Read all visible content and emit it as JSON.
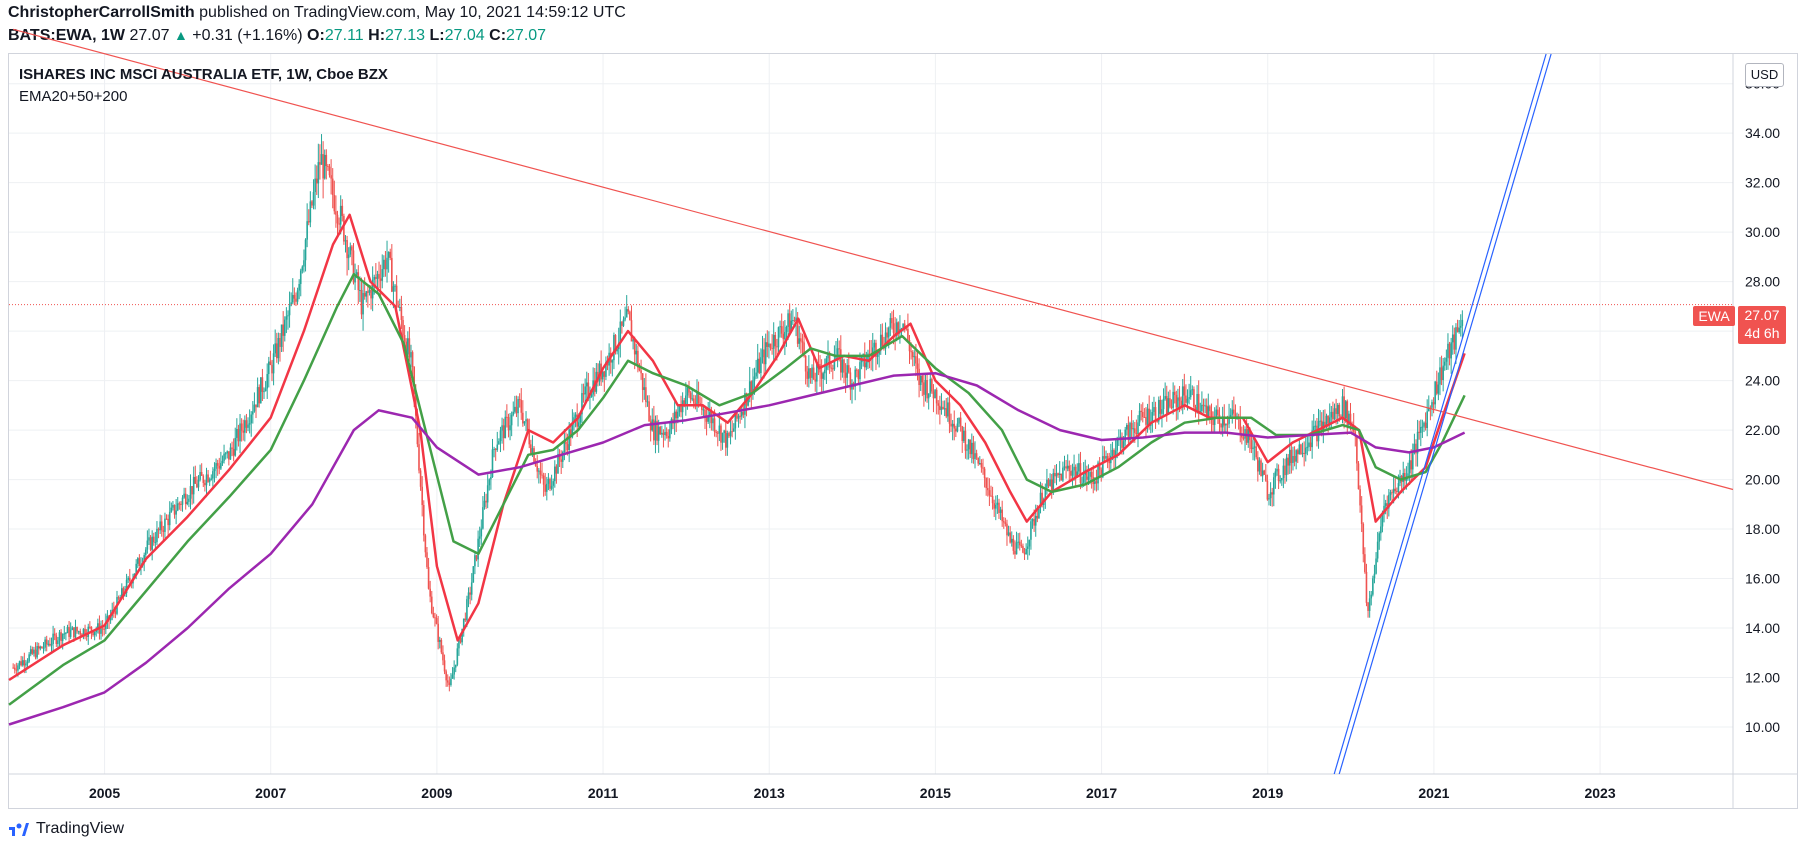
{
  "header": {
    "author": "ChristopherCarrollSmith",
    "published_text": "published on TradingView.com, May 10, 2021 14:59:12 UTC",
    "symbol": "BATS:EWA, 1W",
    "last": "27.07",
    "change_arrow": "▲",
    "change": "+0.31 (+1.16%)",
    "o_label": "O:",
    "o_value": "27.11",
    "h_label": "H:",
    "h_value": "27.13",
    "l_label": "L:",
    "l_value": "27.04",
    "c_label": "C:",
    "c_value": "27.07"
  },
  "legend": {
    "title": "ISHARES INC MSCI AUSTRALIA ETF, 1W, Cboe BZX",
    "study": "EMA20+50+200"
  },
  "price_scale": {
    "currency": "USD",
    "symbol_tag": "EWA",
    "last_price": "27.07",
    "countdown": "4d 6h"
  },
  "footer": {
    "brand": "TradingView"
  },
  "colors": {
    "price_line": "#f05350",
    "ema20": "#f23645",
    "ema50": "#43a047",
    "ema200": "#9c27b0",
    "trendline_down": "#f05350",
    "trendline_up": "#2962ff",
    "candle_up": "#26a69a",
    "candle_down": "#ef5350",
    "grid": "#eef0f3"
  },
  "chart_data": {
    "type": "line",
    "title": "ISHARES INC MSCI AUSTRALIA ETF, 1W, Cboe BZX",
    "x_ticks": [
      "2005",
      "2007",
      "2009",
      "2011",
      "2013",
      "2015",
      "2017",
      "2019",
      "2021",
      "2023"
    ],
    "y_ticks": [
      10,
      12,
      14,
      16,
      18,
      20,
      22,
      24,
      26,
      28,
      30,
      32,
      34,
      36
    ],
    "xlim": [
      2003.85,
      2024.6
    ],
    "ylim": [
      8.1,
      37.2
    ],
    "grid": true,
    "last_price": 27.07,
    "series": [
      {
        "name": "EWA",
        "style": "candles",
        "x": [
          2003.9,
          2004.5,
          2005.0,
          2005.5,
          2006.0,
          2006.5,
          2007.0,
          2007.3,
          2007.6,
          2007.85,
          2008.1,
          2008.4,
          2008.7,
          2008.9,
          2009.15,
          2009.4,
          2009.7,
          2010.0,
          2010.3,
          2010.5,
          2010.8,
          2011.0,
          2011.3,
          2011.6,
          2011.8,
          2012.0,
          2012.3,
          2012.5,
          2012.8,
          2013.0,
          2013.3,
          2013.5,
          2013.8,
          2014.0,
          2014.3,
          2014.6,
          2014.8,
          2015.0,
          2015.3,
          2015.6,
          2015.9,
          2016.05,
          2016.3,
          2016.6,
          2016.9,
          2017.2,
          2017.5,
          2017.8,
          2018.05,
          2018.3,
          2018.6,
          2018.8,
          2019.0,
          2019.3,
          2019.6,
          2019.9,
          2020.05,
          2020.2,
          2020.4,
          2020.7,
          2020.9,
          2021.1,
          2021.3,
          2021.36
        ],
        "values": [
          12.4,
          13.8,
          14.0,
          17.2,
          19.5,
          21.0,
          24.5,
          27.5,
          33.0,
          30.5,
          27.0,
          29.0,
          24.5,
          15.5,
          11.5,
          15.5,
          21.5,
          23.0,
          19.5,
          21.0,
          23.5,
          24.5,
          26.5,
          22.0,
          22.0,
          23.5,
          22.5,
          21.5,
          24.0,
          25.5,
          26.5,
          24.0,
          25.0,
          24.0,
          25.5,
          26.5,
          24.0,
          23.5,
          22.0,
          20.0,
          17.5,
          17.0,
          19.5,
          20.5,
          20.0,
          21.5,
          22.5,
          23.0,
          23.5,
          22.5,
          22.5,
          21.5,
          19.5,
          21.0,
          22.0,
          23.0,
          22.0,
          14.5,
          19.0,
          20.5,
          22.5,
          24.5,
          26.0,
          27.07
        ]
      },
      {
        "name": "EMA20",
        "x": [
          2003.85,
          2004.5,
          2005.0,
          2005.5,
          2006.0,
          2006.5,
          2007.0,
          2007.4,
          2007.75,
          2007.95,
          2008.2,
          2008.5,
          2008.8,
          2009.0,
          2009.25,
          2009.5,
          2009.8,
          2010.1,
          2010.4,
          2010.7,
          2011.0,
          2011.3,
          2011.6,
          2011.9,
          2012.2,
          2012.5,
          2012.8,
          2013.1,
          2013.35,
          2013.6,
          2013.9,
          2014.2,
          2014.5,
          2014.7,
          2015.0,
          2015.3,
          2015.6,
          2015.9,
          2016.1,
          2016.4,
          2016.8,
          2017.2,
          2017.6,
          2018.0,
          2018.3,
          2018.7,
          2019.0,
          2019.3,
          2019.6,
          2019.9,
          2020.1,
          2020.3,
          2020.6,
          2020.9,
          2021.1,
          2021.37
        ],
        "values": [
          11.9,
          13.3,
          14.1,
          16.8,
          18.5,
          20.4,
          22.5,
          26.0,
          29.5,
          30.7,
          28.0,
          27.0,
          22.0,
          16.5,
          13.5,
          15.0,
          19.0,
          22.0,
          21.5,
          22.5,
          24.5,
          26.0,
          24.8,
          23.0,
          23.0,
          22.3,
          23.5,
          25.0,
          26.5,
          24.5,
          25.0,
          24.8,
          25.8,
          26.3,
          24.0,
          23.0,
          21.5,
          19.5,
          18.3,
          19.5,
          20.3,
          21.0,
          22.3,
          23.0,
          22.5,
          22.5,
          20.7,
          21.5,
          22.0,
          22.5,
          22.0,
          18.3,
          19.5,
          20.5,
          22.5,
          25.1
        ]
      },
      {
        "name": "EMA50",
        "x": [
          2003.85,
          2004.5,
          2005.0,
          2005.5,
          2006.0,
          2006.5,
          2007.0,
          2007.4,
          2007.8,
          2008.0,
          2008.3,
          2008.6,
          2008.9,
          2009.2,
          2009.5,
          2009.8,
          2010.1,
          2010.4,
          2010.7,
          2011.0,
          2011.3,
          2011.6,
          2012.0,
          2012.4,
          2012.8,
          2013.2,
          2013.5,
          2013.8,
          2014.2,
          2014.6,
          2015.0,
          2015.4,
          2015.8,
          2016.1,
          2016.4,
          2016.8,
          2017.2,
          2017.6,
          2018.0,
          2018.4,
          2018.8,
          2019.1,
          2019.5,
          2019.9,
          2020.1,
          2020.3,
          2020.6,
          2020.9,
          2021.1,
          2021.37
        ],
        "values": [
          10.9,
          12.5,
          13.5,
          15.5,
          17.5,
          19.3,
          21.2,
          24.0,
          27.0,
          28.3,
          27.5,
          25.5,
          21.5,
          17.5,
          17.0,
          19.0,
          21.0,
          21.2,
          22.0,
          23.3,
          24.8,
          24.3,
          23.8,
          23.0,
          23.5,
          24.5,
          25.3,
          25.0,
          25.0,
          25.8,
          24.5,
          23.5,
          22.0,
          20.0,
          19.5,
          19.8,
          20.5,
          21.5,
          22.3,
          22.5,
          22.5,
          21.8,
          21.8,
          22.2,
          22.0,
          20.5,
          20.0,
          20.3,
          21.5,
          23.4
        ]
      },
      {
        "name": "EMA200",
        "x": [
          2003.85,
          2004.5,
          2005.0,
          2005.5,
          2006.0,
          2006.5,
          2007.0,
          2007.5,
          2008.0,
          2008.3,
          2008.7,
          2009.0,
          2009.5,
          2010.0,
          2010.5,
          2011.0,
          2011.5,
          2012.0,
          2012.5,
          2013.0,
          2013.5,
          2014.0,
          2014.5,
          2015.0,
          2015.5,
          2016.0,
          2016.5,
          2017.0,
          2017.5,
          2018.0,
          2018.5,
          2019.0,
          2019.5,
          2020.0,
          2020.3,
          2020.7,
          2021.0,
          2021.37
        ],
        "values": [
          10.1,
          10.8,
          11.4,
          12.6,
          14.0,
          15.6,
          17.0,
          19.0,
          22.0,
          22.8,
          22.5,
          21.3,
          20.2,
          20.5,
          21.0,
          21.5,
          22.2,
          22.4,
          22.7,
          23.0,
          23.4,
          23.8,
          24.2,
          24.3,
          23.8,
          22.8,
          22.0,
          21.6,
          21.7,
          21.9,
          21.9,
          21.7,
          21.8,
          21.9,
          21.3,
          21.1,
          21.3,
          21.9
        ]
      },
      {
        "name": "Downtrend line",
        "x": [
          2003.9,
          2024.6
        ],
        "values": [
          38.2,
          19.6
        ]
      },
      {
        "name": "Uptrend line",
        "x": [
          2019.8,
          2022.35
        ],
        "values": [
          8.1,
          37.2
        ]
      }
    ]
  }
}
